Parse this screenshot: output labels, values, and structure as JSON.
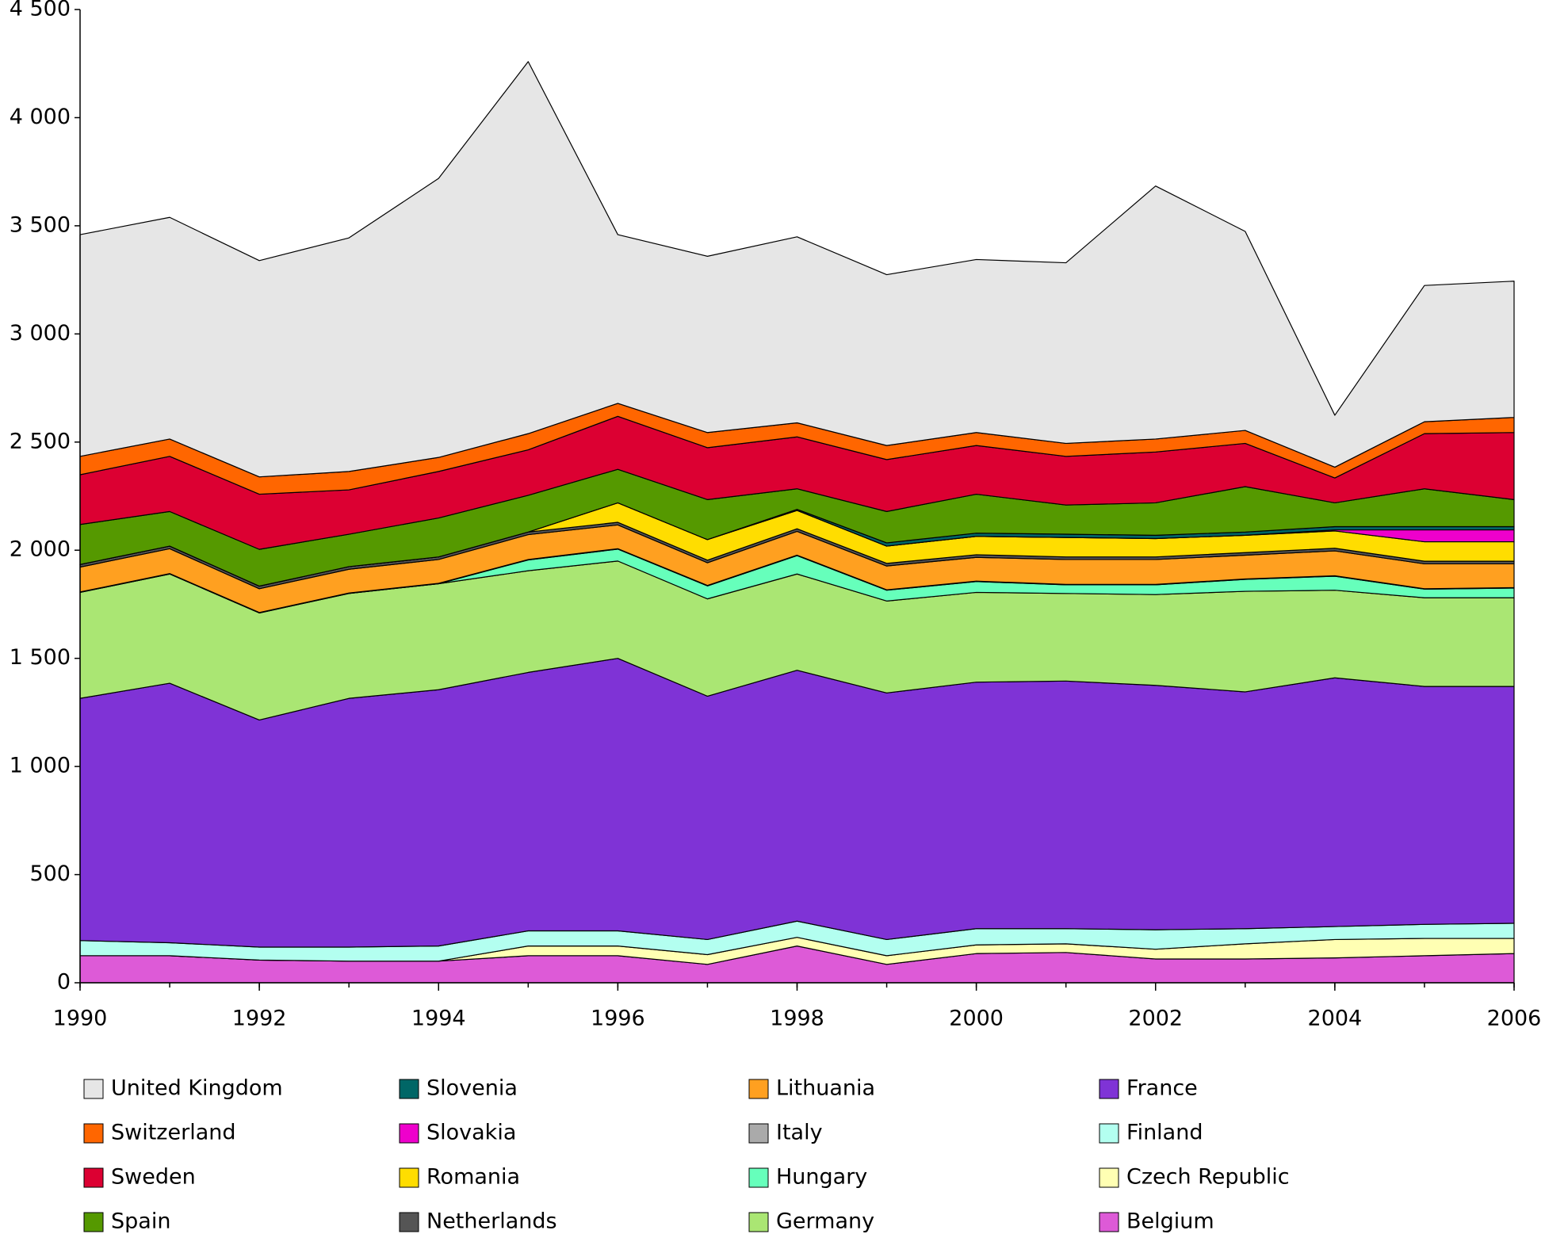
{
  "chart_data": {
    "type": "stacked_area",
    "x": [
      1990,
      1991,
      1992,
      1993,
      1994,
      1995,
      1996,
      1997,
      1998,
      1999,
      2000,
      2001,
      2002,
      2003,
      2004,
      2005,
      2006
    ],
    "xlim": [
      1990,
      2006
    ],
    "xticks": [
      1990,
      1992,
      1994,
      1996,
      1998,
      2000,
      2002,
      2004,
      2006
    ],
    "ylim": [
      0,
      4500
    ],
    "yticks": [
      0,
      500,
      {
        "value": 1000,
        "label": "1 000"
      },
      {
        "value": 1500,
        "label": "1 500"
      },
      {
        "value": 2000,
        "label": "2 000"
      },
      {
        "value": 2500,
        "label": "2 500"
      },
      {
        "value": 3000,
        "label": "3 000"
      },
      {
        "value": 3500,
        "label": "3 500"
      },
      {
        "value": 4000,
        "label": "4 000"
      },
      {
        "value": 4500,
        "label": "4 500"
      }
    ],
    "series": [
      {
        "name": "United Kingdom",
        "color": "#e6e6e6",
        "values": [
          1025,
          1025,
          1000,
          1080,
          1290,
          1720,
          780,
          815,
          860,
          790,
          800,
          835,
          1170,
          920,
          240,
          630,
          630
        ]
      },
      {
        "name": "Switzerland",
        "color": "#ff6600",
        "values": [
          85,
          80,
          80,
          85,
          65,
          75,
          60,
          70,
          65,
          65,
          60,
          60,
          60,
          60,
          50,
          55,
          70
        ]
      },
      {
        "name": "Sweden",
        "color": "#dc0032",
        "values": [
          230,
          255,
          255,
          205,
          215,
          210,
          245,
          240,
          240,
          240,
          225,
          225,
          235,
          200,
          115,
          255,
          310
        ]
      },
      {
        "name": "Spain",
        "color": "#559900",
        "values": [
          185,
          160,
          170,
          150,
          180,
          170,
          155,
          185,
          95,
          145,
          180,
          135,
          150,
          210,
          110,
          175,
          125
        ]
      },
      {
        "name": "Slovenia",
        "color": "#006666",
        "values": [
          0,
          0,
          0,
          0,
          0,
          0,
          0,
          0,
          5,
          15,
          15,
          15,
          15,
          15,
          15,
          15,
          15
        ]
      },
      {
        "name": "Slovakia",
        "color": "#ee00cc",
        "values": [
          0,
          0,
          0,
          0,
          0,
          0,
          0,
          0,
          0,
          0,
          0,
          0,
          0,
          0,
          5,
          55,
          55
        ]
      },
      {
        "name": "Romania",
        "color": "#ffdd00",
        "values": [
          0,
          0,
          0,
          0,
          0,
          0,
          90,
          95,
          85,
          80,
          85,
          90,
          85,
          80,
          80,
          90,
          90
        ]
      },
      {
        "name": "Netherlands",
        "color": "#555555",
        "values": [
          12,
          12,
          12,
          12,
          12,
          12,
          12,
          12,
          12,
          12,
          12,
          12,
          12,
          12,
          12,
          12,
          12
        ]
      },
      {
        "name": "Lithuania",
        "color": "#ffa020",
        "values": [
          115,
          115,
          110,
          110,
          110,
          115,
          110,
          105,
          110,
          110,
          110,
          115,
          115,
          110,
          115,
          115,
          110
        ]
      },
      {
        "name": "Italy",
        "color": "#aaaaaa",
        "values": [
          2,
          2,
          2,
          2,
          2,
          2,
          2,
          2,
          2,
          2,
          2,
          2,
          2,
          2,
          2,
          2,
          2
        ]
      },
      {
        "name": "Hungary",
        "color": "#66ffbb",
        "values": [
          0,
          0,
          0,
          0,
          0,
          50,
          55,
          60,
          85,
          50,
          50,
          40,
          45,
          55,
          65,
          40,
          45
        ]
      },
      {
        "name": "Germany",
        "color": "#aae673",
        "values": [
          490,
          505,
          495,
          485,
          490,
          470,
          450,
          450,
          445,
          425,
          415,
          405,
          420,
          465,
          405,
          410,
          410
        ]
      },
      {
        "name": "France",
        "color": "#7f33d6",
        "values": [
          1120,
          1200,
          1050,
          1150,
          1185,
          1195,
          1260,
          1125,
          1160,
          1140,
          1140,
          1145,
          1130,
          1095,
          1150,
          1100,
          1095
        ]
      },
      {
        "name": "Finland",
        "color": "#b3fff0",
        "values": [
          70,
          60,
          60,
          65,
          70,
          70,
          70,
          70,
          75,
          75,
          75,
          70,
          90,
          70,
          60,
          65,
          70
        ]
      },
      {
        "name": "Czech Republic",
        "color": "#ffffb3",
        "values": [
          0,
          0,
          0,
          0,
          0,
          45,
          45,
          45,
          40,
          40,
          40,
          40,
          45,
          70,
          85,
          80,
          70
        ]
      },
      {
        "name": "Belgium",
        "color": "#dd5ad7",
        "values": [
          125,
          125,
          105,
          100,
          100,
          125,
          125,
          85,
          170,
          85,
          135,
          140,
          110,
          110,
          115,
          125,
          135
        ]
      }
    ]
  }
}
